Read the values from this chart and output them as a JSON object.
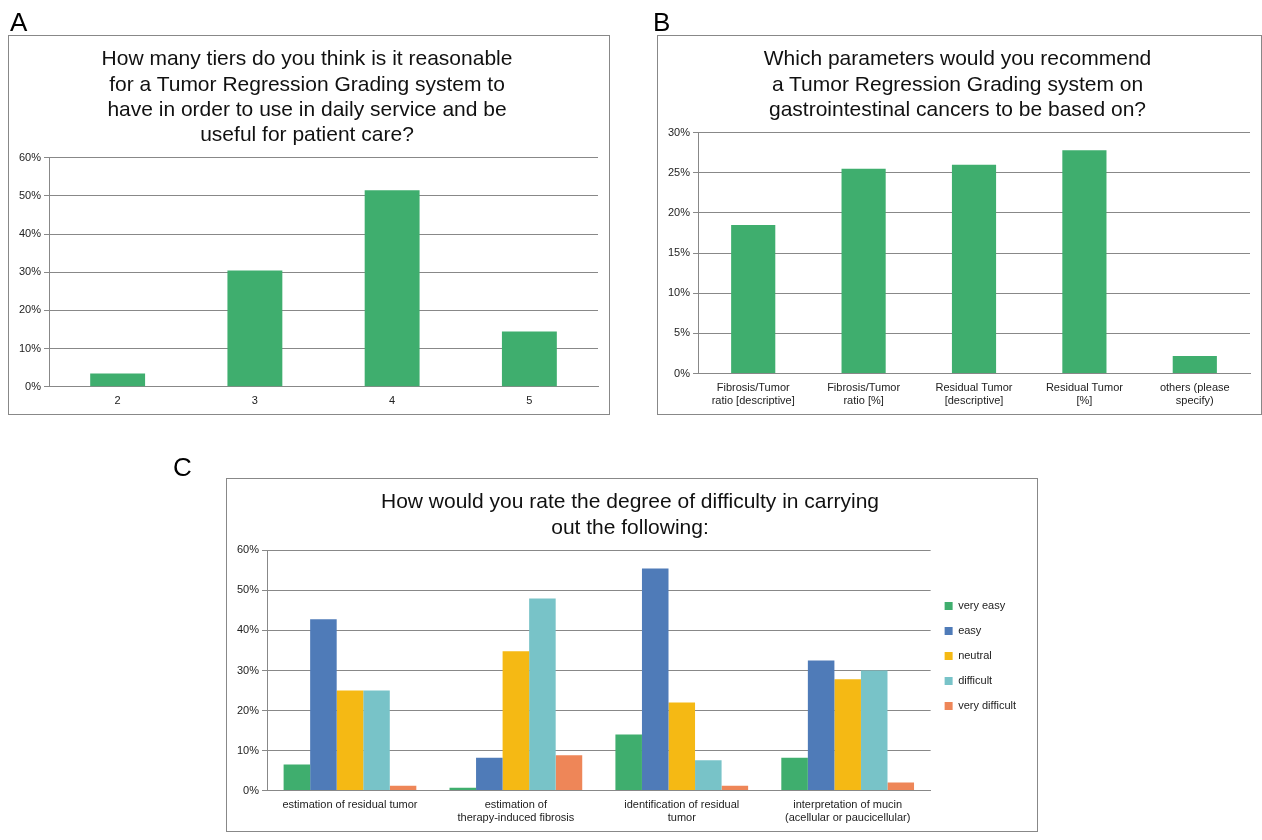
{
  "chart_data": [
    {
      "type": "bar",
      "title": "How many tiers do you think is it reasonable\nfor a Tumor Regression Grading system to\nhave in order to use in daily service and be\nuseful for patient care?",
      "annotations": [
        "A"
      ],
      "categories": [
        "2",
        "3",
        "4",
        "5"
      ],
      "values": [
        3.5,
        30.5,
        51.5,
        14.5
      ],
      "color": "#3fae6e",
      "ylim": [
        0,
        60
      ],
      "yticks": [
        {
          "value": 0,
          "label": "0%"
        },
        {
          "value": 10,
          "label": "10%"
        },
        {
          "value": 20,
          "label": "20%"
        },
        {
          "value": 30,
          "label": "30%"
        },
        {
          "value": 40,
          "label": "40%"
        },
        {
          "value": 50,
          "label": "50%"
        },
        {
          "value": 60,
          "label": "60%"
        }
      ],
      "grid": "y",
      "legend": false
    },
    {
      "type": "bar",
      "title": "Which parameters would you recommend\na Tumor Regression Grading system on\ngastrointestinal cancers to be based on?",
      "annotations": [
        "B"
      ],
      "categories": [
        "Fibrosis/Tumor ratio [descriptive]",
        "Fibrosis/Tumor ratio [%]",
        "Residual Tumor [descriptive]",
        "Residual Tumor [%]",
        "others (please specify)"
      ],
      "values": [
        18.5,
        25.5,
        26,
        27.8,
        2.2
      ],
      "color": "#3fae6e",
      "ylim": [
        0,
        30
      ],
      "yticks": [
        {
          "value": 0,
          "label": "0%"
        },
        {
          "value": 5,
          "label": "5%"
        },
        {
          "value": 10,
          "label": "10%"
        },
        {
          "value": 15,
          "label": "15%"
        },
        {
          "value": 20,
          "label": "20%"
        },
        {
          "value": 25,
          "label": "25%"
        },
        {
          "value": 30,
          "label": "30%"
        }
      ],
      "grid": "y",
      "legend": false
    },
    {
      "type": "bar",
      "title": "How would you rate the degree of difficulty in carrying\nout the following:",
      "annotations": [
        "C"
      ],
      "categories": [
        "estimation of residual tumor",
        "estimation of therapy-induced fibrosis",
        "identification of residual tumor",
        "interpretation of mucin (acellular or paucicellular)"
      ],
      "series": [
        {
          "name": "very easy",
          "color": "#3fae6e",
          "values": [
            6.5,
            0.7,
            14,
            8.2
          ]
        },
        {
          "name": "easy",
          "color": "#4f7bb8",
          "values": [
            42.8,
            8.2,
            55.5,
            32.5
          ]
        },
        {
          "name": "neutral",
          "color": "#f5b914",
          "values": [
            25,
            34.8,
            22,
            27.8
          ]
        },
        {
          "name": "difficult",
          "color": "#78c3c8",
          "values": [
            25,
            48,
            7.6,
            30
          ]
        },
        {
          "name": "very difficult",
          "color": "#ee8658",
          "values": [
            1.2,
            8.8,
            1.2,
            2
          ]
        }
      ],
      "ylim": [
        0,
        60
      ],
      "yticks": [
        {
          "value": 0,
          "label": "0%"
        },
        {
          "value": 10,
          "label": "10%"
        },
        {
          "value": 20,
          "label": "20%"
        },
        {
          "value": 30,
          "label": "30%"
        },
        {
          "value": 40,
          "label": "40%"
        },
        {
          "value": 50,
          "label": "50%"
        },
        {
          "value": 60,
          "label": "60%"
        }
      ],
      "grid": "y",
      "legend": "right"
    }
  ]
}
